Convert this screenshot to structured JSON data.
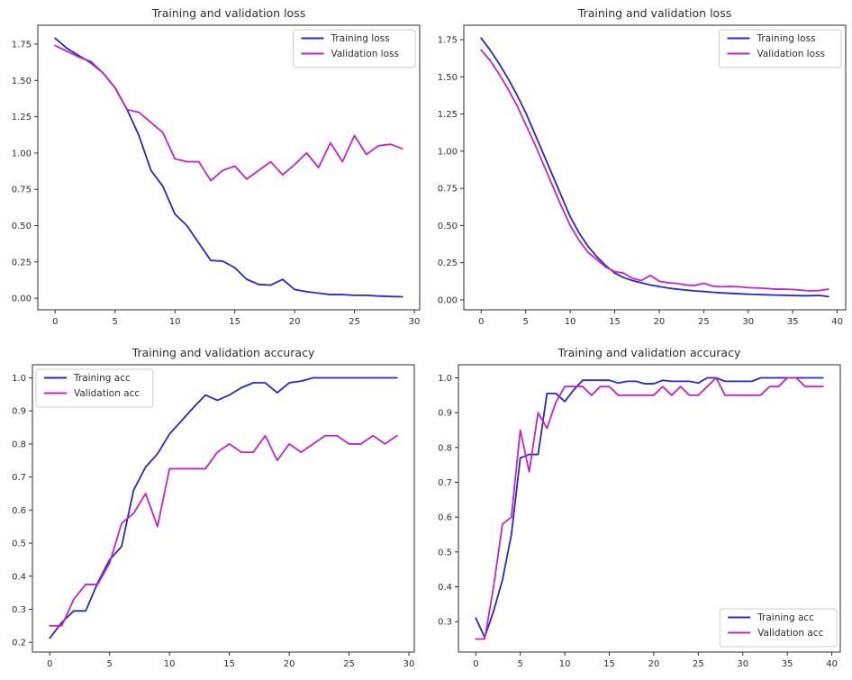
{
  "figure": {
    "background": "#ffffff",
    "axis_color": "#2b2b2b",
    "legend_border_color": "#cccccc",
    "legend_background": "#ffffff"
  },
  "chart_data": [
    {
      "id": "loss-30-epochs",
      "type": "line",
      "title": "Training and validation loss",
      "xlabel": "",
      "ylabel": "",
      "xlim": [
        -1.45,
        30.45
      ],
      "ylim": [
        -0.08,
        1.88
      ],
      "xticks": [
        0,
        5,
        10,
        15,
        20,
        25,
        30
      ],
      "xtick_labels": [
        "0",
        "5",
        "10",
        "15",
        "20",
        "25",
        "30"
      ],
      "yticks": [
        0.0,
        0.25,
        0.5,
        0.75,
        1.0,
        1.25,
        1.5,
        1.75
      ],
      "ytick_labels": [
        "0.00",
        "0.25",
        "0.50",
        "0.75",
        "1.00",
        "1.25",
        "1.50",
        "1.75"
      ],
      "grid": false,
      "legend_position": "top-right",
      "series": [
        {
          "name": "Training loss",
          "color": "#2727d2",
          "values": [
            1.79,
            1.72,
            1.67,
            1.62,
            1.55,
            1.45,
            1.3,
            1.12,
            0.88,
            0.77,
            0.58,
            0.5,
            0.38,
            0.26,
            0.255,
            0.21,
            0.13,
            0.095,
            0.09,
            0.13,
            0.06,
            0.045,
            0.035,
            0.025,
            0.025,
            0.02,
            0.02,
            0.015,
            0.012,
            0.01
          ]
        },
        {
          "name": "Validation loss",
          "color": "#c226c2",
          "values": [
            1.74,
            1.7,
            1.66,
            1.63,
            1.55,
            1.45,
            1.3,
            1.28,
            1.21,
            1.14,
            0.96,
            0.94,
            0.94,
            0.81,
            0.88,
            0.91,
            0.82,
            0.88,
            0.94,
            0.85,
            0.92,
            1.0,
            0.9,
            1.07,
            0.94,
            1.12,
            0.99,
            1.05,
            1.06,
            1.03
          ]
        }
      ]
    },
    {
      "id": "loss-40-epochs",
      "type": "line",
      "title": "Training and validation loss",
      "xlabel": "",
      "ylabel": "",
      "xlim": [
        -1.95,
        40.95
      ],
      "ylim": [
        -0.067,
        1.847
      ],
      "xticks": [
        0,
        5,
        10,
        15,
        20,
        25,
        30,
        35,
        40
      ],
      "xtick_labels": [
        "0",
        "5",
        "10",
        "15",
        "20",
        "25",
        "30",
        "35",
        "40"
      ],
      "yticks": [
        0.0,
        0.25,
        0.5,
        0.75,
        1.0,
        1.25,
        1.5,
        1.75
      ],
      "ytick_labels": [
        "0.00",
        "0.25",
        "0.50",
        "0.75",
        "1.00",
        "1.25",
        "1.50",
        "1.75"
      ],
      "grid": false,
      "legend_position": "top-right",
      "series": [
        {
          "name": "Training loss",
          "color": "#2727d2",
          "values": [
            1.76,
            1.68,
            1.59,
            1.49,
            1.38,
            1.26,
            1.12,
            0.98,
            0.84,
            0.7,
            0.56,
            0.45,
            0.36,
            0.29,
            0.23,
            0.18,
            0.15,
            0.13,
            0.115,
            0.1,
            0.09,
            0.08,
            0.072,
            0.066,
            0.06,
            0.056,
            0.051,
            0.047,
            0.044,
            0.041,
            0.038,
            0.036,
            0.034,
            0.032,
            0.031,
            0.029,
            0.028,
            0.028,
            0.03,
            0.022
          ]
        },
        {
          "name": "Validation loss",
          "color": "#c226c2",
          "values": [
            1.68,
            1.61,
            1.52,
            1.42,
            1.31,
            1.18,
            1.05,
            0.91,
            0.77,
            0.63,
            0.5,
            0.4,
            0.32,
            0.27,
            0.22,
            0.19,
            0.18,
            0.145,
            0.13,
            0.165,
            0.125,
            0.115,
            0.11,
            0.1,
            0.097,
            0.112,
            0.092,
            0.088,
            0.09,
            0.088,
            0.082,
            0.08,
            0.077,
            0.072,
            0.072,
            0.07,
            0.065,
            0.06,
            0.063,
            0.072
          ]
        }
      ]
    },
    {
      "id": "accuracy-30-epochs",
      "type": "line",
      "title": "Training and validation accuracy",
      "xlabel": "",
      "ylabel": "",
      "xlim": [
        -1.45,
        30.45
      ],
      "ylim": [
        0.1705,
        1.0395
      ],
      "xticks": [
        0,
        5,
        10,
        15,
        20,
        25,
        30
      ],
      "xtick_labels": [
        "0",
        "5",
        "10",
        "15",
        "20",
        "25",
        "30"
      ],
      "yticks": [
        0.2,
        0.3,
        0.4,
        0.5,
        0.6,
        0.7,
        0.8,
        0.9,
        1.0
      ],
      "ytick_labels": [
        "0.2",
        "0.3",
        "0.4",
        "0.5",
        "0.6",
        "0.7",
        "0.8",
        "0.9",
        "1.0"
      ],
      "grid": false,
      "legend_position": "top-left",
      "series": [
        {
          "name": "Training acc",
          "color": "#2727d2",
          "values": [
            0.213,
            0.26,
            0.295,
            0.295,
            0.38,
            0.45,
            0.49,
            0.66,
            0.73,
            0.77,
            0.83,
            0.87,
            0.91,
            0.948,
            0.932,
            0.948,
            0.97,
            0.985,
            0.985,
            0.955,
            0.985,
            0.99,
            1.0,
            1.0,
            1.0,
            1.0,
            1.0,
            1.0,
            1.0,
            1.0
          ]
        },
        {
          "name": "Validation acc",
          "color": "#c226c2",
          "values": [
            0.25,
            0.25,
            0.33,
            0.375,
            0.375,
            0.44,
            0.56,
            0.59,
            0.65,
            0.55,
            0.725,
            0.725,
            0.725,
            0.725,
            0.775,
            0.8,
            0.775,
            0.775,
            0.825,
            0.75,
            0.8,
            0.775,
            0.8,
            0.825,
            0.825,
            0.8,
            0.8,
            0.825,
            0.8,
            0.825
          ]
        }
      ]
    },
    {
      "id": "accuracy-40-epochs",
      "type": "line",
      "title": "Training and validation accuracy",
      "xlabel": "",
      "ylabel": "",
      "xlim": [
        -1.95,
        40.95
      ],
      "ylim": [
        0.2125,
        1.0375
      ],
      "xticks": [
        0,
        5,
        10,
        15,
        20,
        25,
        30,
        35,
        40
      ],
      "xtick_labels": [
        "0",
        "5",
        "10",
        "15",
        "20",
        "25",
        "30",
        "35",
        "40"
      ],
      "yticks": [
        0.3,
        0.4,
        0.5,
        0.6,
        0.7,
        0.8,
        0.9,
        1.0
      ],
      "ytick_labels": [
        "0.3",
        "0.4",
        "0.5",
        "0.6",
        "0.7",
        "0.8",
        "0.9",
        "1.0"
      ],
      "grid": false,
      "legend_position": "bottom-right",
      "series": [
        {
          "name": "Training acc",
          "color": "#2727d2",
          "values": [
            0.31,
            0.255,
            0.33,
            0.42,
            0.55,
            0.77,
            0.78,
            0.78,
            0.955,
            0.955,
            0.932,
            0.965,
            0.993,
            0.993,
            0.993,
            0.993,
            0.985,
            0.99,
            0.99,
            0.983,
            0.983,
            0.993,
            0.99,
            0.99,
            0.99,
            0.985,
            1.0,
            1.0,
            0.99,
            0.99,
            0.99,
            0.99,
            1.0,
            1.0,
            1.0,
            1.0,
            1.0,
            1.0,
            1.0,
            1.0
          ]
        },
        {
          "name": "Validation acc",
          "color": "#c226c2",
          "values": [
            0.25,
            0.25,
            0.4,
            0.58,
            0.6,
            0.85,
            0.73,
            0.9,
            0.855,
            0.93,
            0.975,
            0.975,
            0.975,
            0.95,
            0.975,
            0.975,
            0.95,
            0.95,
            0.95,
            0.95,
            0.95,
            0.975,
            0.95,
            0.975,
            0.95,
            0.95,
            0.975,
            1.0,
            0.95,
            0.95,
            0.95,
            0.95,
            0.95,
            0.975,
            0.975,
            1.0,
            1.0,
            0.975,
            0.975,
            0.975
          ]
        }
      ]
    }
  ]
}
